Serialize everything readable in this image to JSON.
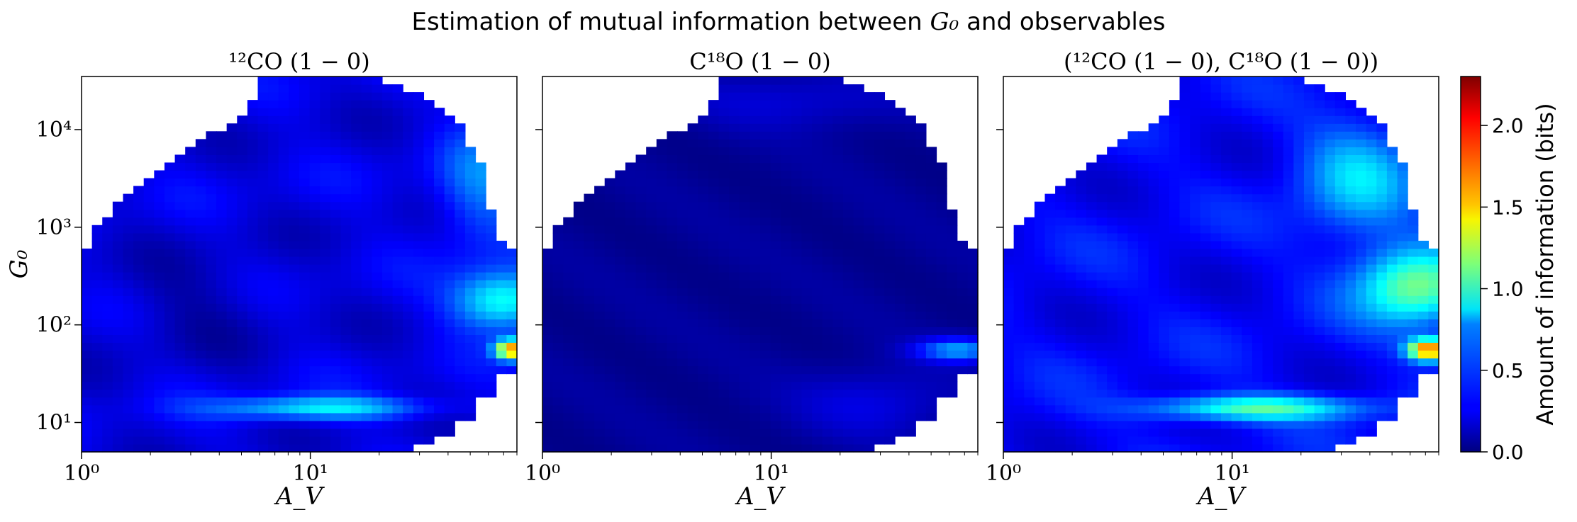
{
  "figure": {
    "title": "Estimation of mutual information between G₀ and observables",
    "title_text": "Estimation of mutual information between",
    "title_symbol": "G₀",
    "title_tail": "and observables"
  },
  "colormap": "jet",
  "colorbar": {
    "label": "Amount of information (bits)",
    "min": 0.0,
    "max": 2.3,
    "ticks": [
      0.0,
      0.5,
      1.0,
      1.5,
      2.0
    ],
    "tick_labels": [
      "0.0",
      "0.5",
      "1.0",
      "1.5",
      "2.0"
    ]
  },
  "chart_data": [
    {
      "type": "heatmap",
      "title": "¹²CO (1 − 0)",
      "xlabel": "A_V",
      "ylabel": "G₀",
      "xscale": "log",
      "yscale": "log",
      "xlim": [
        1,
        80
      ],
      "ylim": [
        5,
        35000
      ],
      "x_ticks": [
        {
          "value": 1,
          "label": "10⁰"
        },
        {
          "value": 10,
          "label": "10¹"
        }
      ],
      "y_ticks": [
        {
          "value": 10,
          "label": "10¹"
        },
        {
          "value": 100,
          "label": "10²"
        },
        {
          "value": 1000,
          "label": "10³"
        },
        {
          "value": 10000,
          "label": "10⁴"
        }
      ],
      "regions": [
        {
          "av": [
            5,
            30
          ],
          "g0": [
            10,
            25
          ],
          "value": 0.85,
          "description": "bright band at low G₀"
        },
        {
          "av": [
            40,
            80
          ],
          "g0": [
            60,
            300
          ],
          "value": 1.0,
          "description": "high A_V moderate G₀"
        },
        {
          "av": [
            60,
            80
          ],
          "g0": [
            40,
            80
          ],
          "value": 2.1,
          "description": "peak"
        },
        {
          "av": [
            1,
            80
          ],
          "g0": [
            100,
            35000
          ],
          "value": 0.25,
          "description": "background"
        }
      ],
      "peak_value": 2.1
    },
    {
      "type": "heatmap",
      "title": "C¹⁸O (1 − 0)",
      "xlabel": "A_V",
      "ylabel": "",
      "xscale": "log",
      "yscale": "log",
      "xlim": [
        1,
        80
      ],
      "ylim": [
        5,
        35000
      ],
      "x_ticks": [
        {
          "value": 1,
          "label": "10⁰"
        },
        {
          "value": 10,
          "label": "10¹"
        }
      ],
      "y_ticks": [],
      "regions": [
        {
          "av": [
            1,
            80
          ],
          "g0": [
            5,
            35000
          ],
          "value": 0.05,
          "description": "mostly near zero"
        },
        {
          "av": [
            40,
            80
          ],
          "g0": [
            40,
            80
          ],
          "value": 0.8,
          "description": "weak feature at high A_V"
        }
      ],
      "peak_value": 0.85
    },
    {
      "type": "heatmap",
      "title": "(¹²CO (1 − 0), C¹⁸O (1 − 0))",
      "xlabel": "A_V",
      "ylabel": "",
      "xscale": "log",
      "yscale": "log",
      "xlim": [
        1,
        80
      ],
      "ylim": [
        5,
        35000
      ],
      "x_ticks": [
        {
          "value": 1,
          "label": "10⁰"
        },
        {
          "value": 10,
          "label": "10¹"
        }
      ],
      "y_ticks": [],
      "regions": [
        {
          "av": [
            5,
            30
          ],
          "g0": [
            10,
            25
          ],
          "value": 1.05,
          "description": "bright band at low G₀"
        },
        {
          "av": [
            30,
            80
          ],
          "g0": [
            100,
            3000
          ],
          "value": 1.1,
          "description": "high A_V region"
        },
        {
          "av": [
            60,
            80
          ],
          "g0": [
            40,
            80
          ],
          "value": 2.3,
          "description": "peak"
        }
      ],
      "peak_value": 2.3
    }
  ]
}
